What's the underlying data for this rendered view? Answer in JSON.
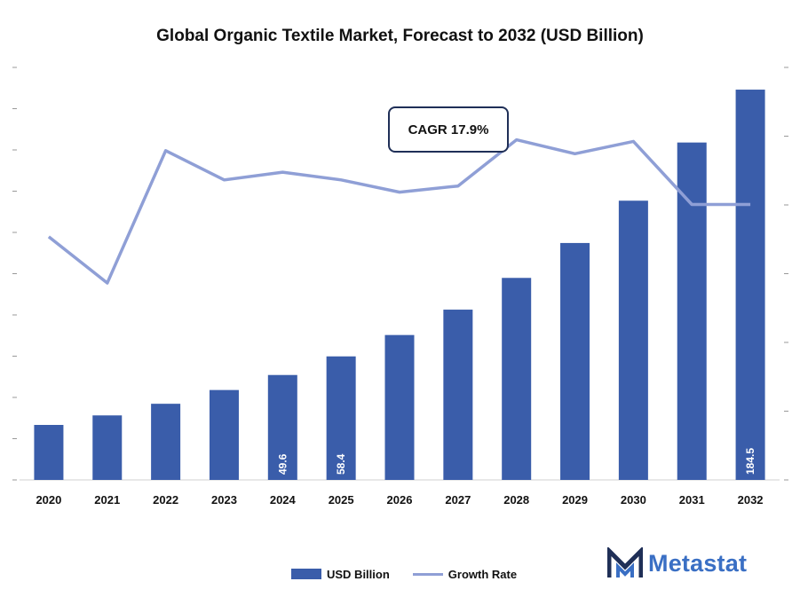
{
  "chart_data": {
    "type": "bar",
    "title": "Global Organic Textile Market, Forecast to 2032 (USD Billion)",
    "categories": [
      "2020",
      "2021",
      "2022",
      "2023",
      "2024",
      "2025",
      "2026",
      "2027",
      "2028",
      "2029",
      "2030",
      "2031",
      "2032"
    ],
    "series": [
      {
        "name": "USD Billion",
        "type": "bar",
        "values": [
          26,
          30.5,
          36,
          42.5,
          49.6,
          58.4,
          68.5,
          80.5,
          95.5,
          112,
          132,
          159.5,
          184.5
        ],
        "data_labels": [
          null,
          null,
          null,
          null,
          "49.6",
          "58.4",
          null,
          null,
          null,
          null,
          null,
          null,
          "184.5"
        ],
        "color": "#3a5daa"
      },
      {
        "name": "Growth Rate",
        "type": "line",
        "values": [
          15.8,
          12.8,
          21.4,
          19.5,
          20.0,
          19.5,
          18.7,
          19.1,
          22.1,
          21.2,
          22.0,
          17.9,
          17.9
        ],
        "color": "#8f9fd6"
      }
    ],
    "annotations": [
      "CAGR 17.9%"
    ],
    "ylim_bars": [
      0,
      195
    ],
    "ylim_line": [
      0,
      26
    ],
    "grid": false,
    "legend_position": "bottom"
  },
  "annotation": {
    "cagr": "CAGR 17.9%"
  },
  "legend": {
    "bar_label": "USD Billion",
    "line_label": "Growth Rate"
  },
  "logo": {
    "text": "Metastat"
  }
}
